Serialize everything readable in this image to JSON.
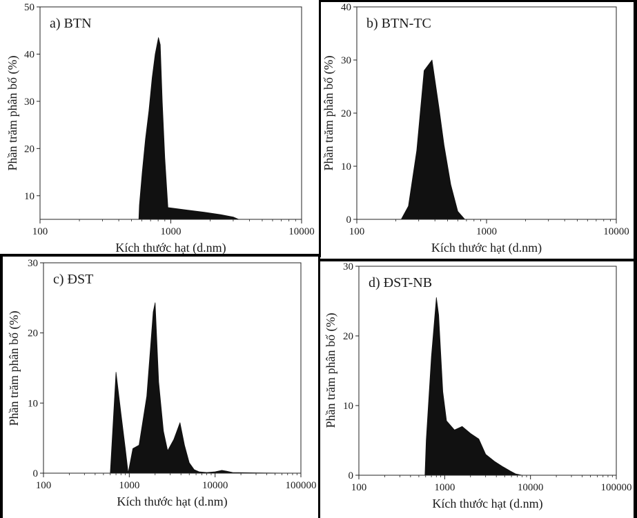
{
  "chart_data": [
    {
      "type": "area",
      "panel_label": "a) BTN",
      "ylabel": "Phần trăm phân bố (%)",
      "xlabel": "Kích thước hạt (d.nm)",
      "x_scale": "log",
      "xlim": [
        100,
        10000
      ],
      "ylim": [
        5,
        50
      ],
      "x_ticks": [
        100,
        1000,
        10000
      ],
      "x_tick_labels": [
        "100",
        "1000",
        "10000"
      ],
      "y_ticks": [
        10,
        20,
        30,
        40,
        50
      ],
      "y_tick_labels": [
        "10",
        "20",
        "30",
        "40",
        "50"
      ],
      "series": [
        {
          "x": [
            570,
            575,
            605,
            640,
            680,
            720,
            760,
            805,
            830,
            860,
            900,
            950,
            1300,
            1800,
            2400,
            3000,
            3300
          ],
          "y": [
            5,
            8,
            15,
            22,
            28,
            35,
            40,
            43.5,
            42,
            30,
            18,
            7.5,
            7,
            6.5,
            6,
            5.5,
            5
          ]
        }
      ]
    },
    {
      "type": "area",
      "panel_label": "b) BTN-TC",
      "ylabel": "Phần trăm phân bố (%)",
      "xlabel": "Kích thước hạt (d.nm)",
      "x_scale": "log",
      "xlim": [
        100,
        10000
      ],
      "ylim": [
        0,
        40
      ],
      "x_ticks": [
        100,
        1000,
        10000
      ],
      "x_tick_labels": [
        "100",
        "1000",
        "10000"
      ],
      "y_ticks": [
        0,
        10,
        20,
        30,
        40
      ],
      "y_tick_labels": [
        "0",
        "10",
        "20",
        "30",
        "40"
      ],
      "series": [
        {
          "x": [
            220,
            250,
            290,
            330,
            380,
            430,
            470,
            530,
            600,
            680
          ],
          "y": [
            0,
            2.5,
            13,
            28,
            30,
            21,
            14,
            6.5,
            1.5,
            0
          ]
        }
      ]
    },
    {
      "type": "area",
      "panel_label": "c) ĐST",
      "ylabel": "Phần trăm phân bố (%)",
      "xlabel": "Kích thước hạt (d.nm)",
      "x_scale": "log",
      "xlim": [
        100,
        100000
      ],
      "ylim": [
        0,
        30
      ],
      "x_ticks": [
        100,
        1000,
        10000,
        100000
      ],
      "x_tick_labels": [
        "100",
        "1000",
        "10000",
        "100000"
      ],
      "y_ticks": [
        0,
        10,
        20,
        30
      ],
      "y_tick_labels": [
        "0",
        "10",
        "20",
        "30"
      ],
      "series": [
        {
          "x": [
            600,
            700,
            800,
            900,
            970,
            1100,
            1300,
            1600,
            1900,
            2000,
            2200,
            2500,
            2800,
            3300,
            3900,
            4400,
            5000,
            5700,
            6500,
            8000,
            10000,
            12000,
            13500,
            16000,
            30000,
            80000
          ],
          "y": [
            0,
            14.4,
            8.5,
            3.5,
            0,
            3.5,
            4,
            11,
            23,
            24.3,
            13,
            6,
            3.2,
            4.8,
            7.2,
            4,
            1.5,
            0.5,
            0.2,
            0.1,
            0.2,
            0.4,
            0.3,
            0.1,
            0.05,
            0
          ]
        }
      ]
    },
    {
      "type": "area",
      "panel_label": "d) ĐST-NB",
      "ylabel": "Phần trăm phân bố (%)",
      "xlabel": "Kích thước hạt (d.nm)",
      "x_scale": "log",
      "xlim": [
        100,
        100000
      ],
      "ylim": [
        0,
        30
      ],
      "x_ticks": [
        100,
        1000,
        10000,
        100000
      ],
      "x_tick_labels": [
        "100",
        "1000",
        "10000",
        "100000"
      ],
      "y_ticks": [
        0,
        10,
        20,
        30
      ],
      "y_tick_labels": [
        "0",
        "10",
        "20",
        "30"
      ],
      "series": [
        {
          "x": [
            590,
            610,
            700,
            800,
            850,
            950,
            1050,
            1300,
            1600,
            2000,
            2500,
            3000,
            3800,
            4800,
            5800,
            6700,
            8000
          ],
          "y": [
            0,
            5,
            17,
            25.5,
            23,
            12,
            7.8,
            6.5,
            7,
            6,
            5.2,
            3,
            2,
            1.2,
            0.6,
            0.2,
            0
          ]
        }
      ]
    }
  ]
}
